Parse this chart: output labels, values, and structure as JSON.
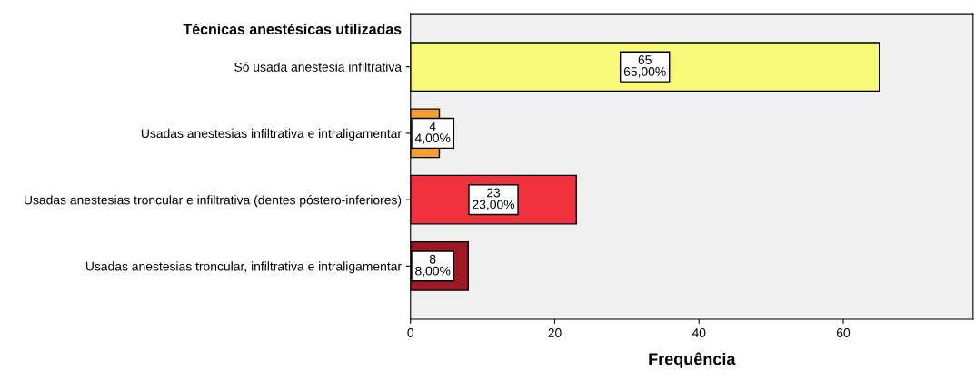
{
  "chart_data": {
    "type": "bar",
    "orientation": "horizontal",
    "ylabel": "Técnicas anestésicas utilizadas",
    "xlabel": "Frequência",
    "categories": [
      "Só usada anestesia infiltrativa",
      "Usadas anestesias infiltrativa e intraligamentar",
      "Usadas anestesias troncular e infiltrativa (dentes póstero-inferiores)",
      "Usadas anestesias troncular, infiltrativa e intraligamentar"
    ],
    "values": [
      65,
      4,
      23,
      8
    ],
    "colors": [
      "#f8f87a",
      "#f4a030",
      "#f0323c",
      "#9e1a22"
    ],
    "value_labels": [
      "65\n65,00%",
      "4\n4,00%",
      "23\n23,00%",
      "8\n8,00%"
    ],
    "xlim": [
      0,
      78
    ],
    "xticks": [
      0,
      20,
      40,
      60
    ],
    "grid": false,
    "legend": false
  }
}
